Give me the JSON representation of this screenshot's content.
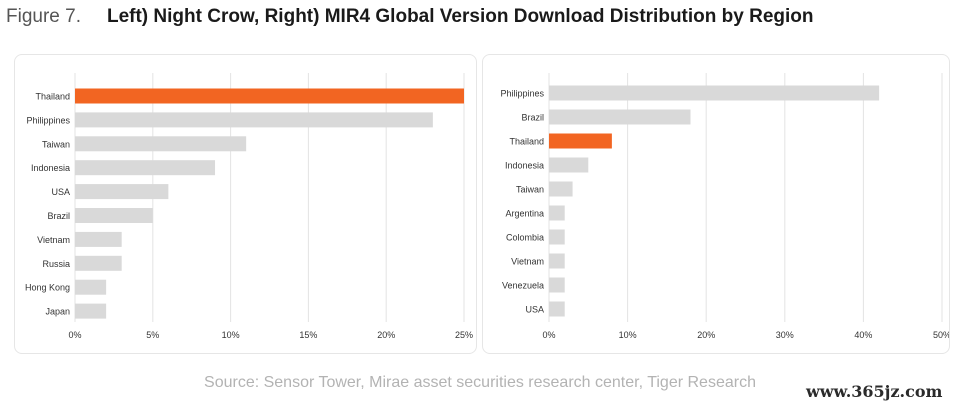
{
  "header": {
    "figure_label": "Figure 7.",
    "title": "Left) Night Crow, Right) MIR4 Global Version Download Distribution by Region"
  },
  "colors": {
    "highlight": "#f26522",
    "bar": "#d9d9d9",
    "grid": "#e3e3e3",
    "axis_text": "#333333"
  },
  "chart_data": [
    {
      "type": "bar",
      "orientation": "horizontal",
      "title": "Night Crow",
      "categories": [
        "Thailand",
        "Philippines",
        "Taiwan",
        "Indonesia",
        "USA",
        "Brazil",
        "Vietnam",
        "Russia",
        "Hong Kong",
        "Japan"
      ],
      "values": [
        25,
        23,
        11,
        9,
        6,
        5,
        3,
        3,
        2,
        2
      ],
      "highlight": "Thailand",
      "xlim": [
        0,
        25
      ],
      "xticks": [
        0,
        5,
        10,
        15,
        20,
        25
      ],
      "xtick_labels": [
        "0%",
        "5%",
        "10%",
        "15%",
        "20%",
        "25%"
      ],
      "unit": "%",
      "grid": true
    },
    {
      "type": "bar",
      "orientation": "horizontal",
      "title": "MIR4",
      "categories": [
        "Philippines",
        "Brazil",
        "Thailand",
        "Indonesia",
        "Taiwan",
        "Argentina",
        "Colombia",
        "Vietnam",
        "Venezuela",
        "USA"
      ],
      "values": [
        42,
        18,
        8,
        5,
        3,
        2,
        2,
        2,
        2,
        2
      ],
      "highlight": "Thailand",
      "xlim": [
        0,
        50
      ],
      "xticks": [
        0,
        10,
        20,
        30,
        40,
        50
      ],
      "xtick_labels": [
        "0%",
        "10%",
        "20%",
        "30%",
        "40%",
        "50%"
      ],
      "unit": "%",
      "grid": true
    }
  ],
  "footer": {
    "source": "Source: Sensor Tower, Mirae asset securities research center, Tiger Research",
    "watermark": "www.365jz.com"
  }
}
